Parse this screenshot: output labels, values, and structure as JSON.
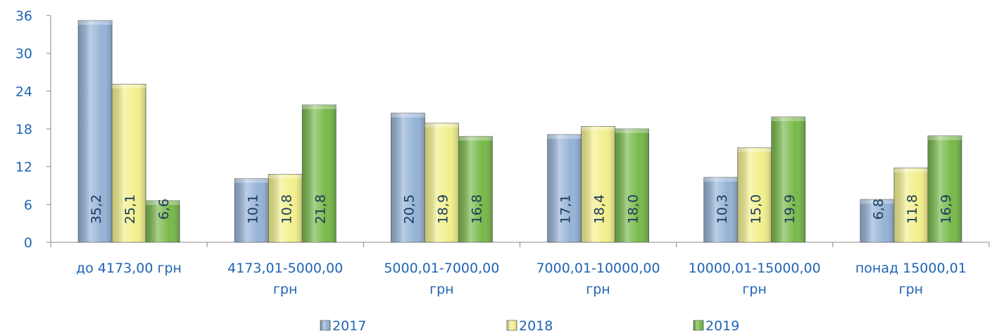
{
  "chart_data": {
    "type": "bar",
    "categories": [
      "до 4173,00 грн",
      "4173,01-5000,00\nгрн",
      "5000,01-7000,00\nгрн",
      "7000,01-10000,00\nгрн",
      "10000,01-15000,00\nгрн",
      "понад 15000,01\nгрн"
    ],
    "series": [
      {
        "name": "2017",
        "color": "#95b3d7",
        "values": [
          35.2,
          10.1,
          20.5,
          17.1,
          10.3,
          6.8
        ],
        "value_labels": [
          "35,2",
          "10,1",
          "20,5",
          "17,1",
          "10,3",
          "6,8"
        ]
      },
      {
        "name": "2018",
        "color": "#f2f08c",
        "values": [
          25.1,
          10.8,
          18.9,
          18.4,
          15.0,
          11.8
        ],
        "value_labels": [
          "25,1",
          "10,8",
          "18,9",
          "18,4",
          "15,0",
          "11,8"
        ]
      },
      {
        "name": "2019",
        "color": "#77b94a",
        "values": [
          6.6,
          21.8,
          16.8,
          18.0,
          19.9,
          16.9
        ],
        "value_labels": [
          "6,6",
          "21,8",
          "16,8",
          "18,0",
          "19,9",
          "16,9"
        ]
      }
    ],
    "ylim": [
      0,
      36
    ],
    "yticks": [
      0,
      6,
      12,
      18,
      24,
      30,
      36
    ],
    "grid": false,
    "legend": "bottom"
  }
}
